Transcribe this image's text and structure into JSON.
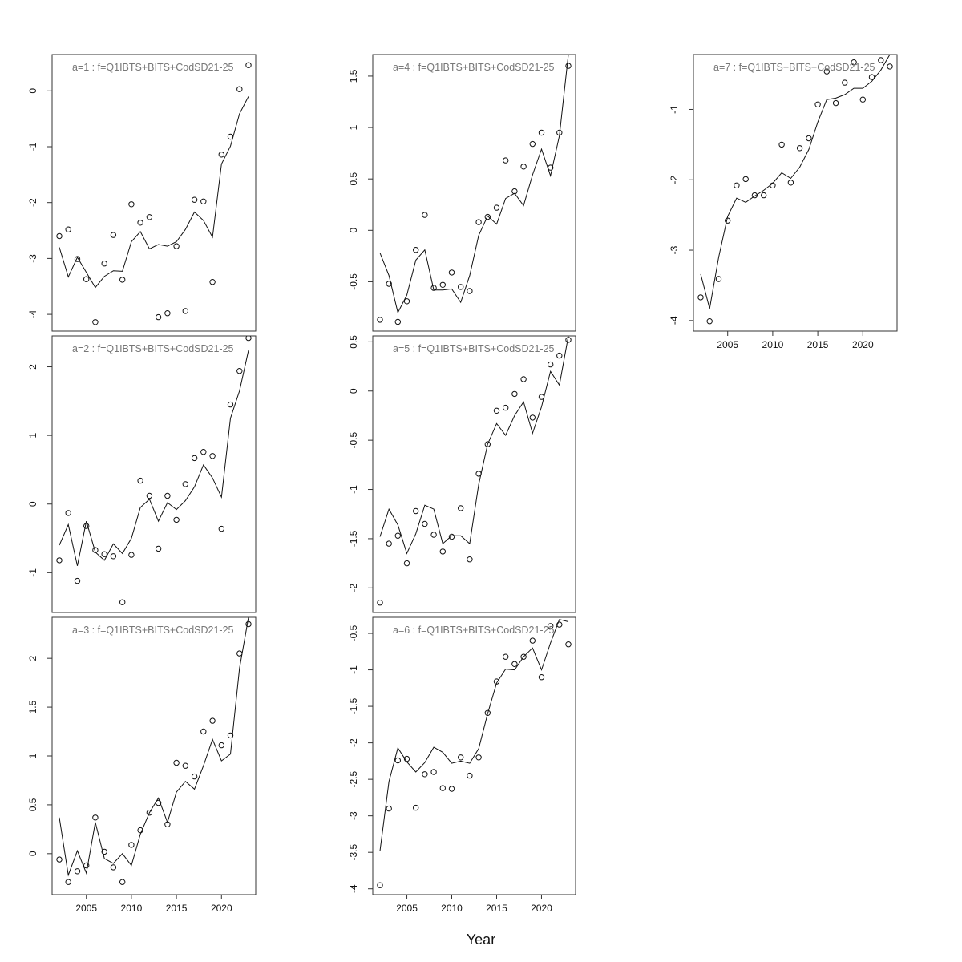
{
  "figure": {
    "xlabel": "Year"
  },
  "chart_data": [
    {
      "type": "scatter",
      "title": "a=1  :  f=Q1IBTS+BITS+CodSD21-25",
      "ylim": [
        -4.3,
        0.65
      ],
      "yticks": [
        -4,
        -3,
        -2,
        -1,
        0
      ],
      "xlim": [
        2001.2,
        2023.8
      ],
      "xticks": [],
      "x": [
        2002,
        2003,
        2004,
        2005,
        2006,
        2007,
        2008,
        2009,
        2010,
        2011,
        2012,
        2013,
        2014,
        2015,
        2016,
        2017,
        2018,
        2019,
        2020,
        2021,
        2022,
        2023
      ],
      "series": [
        {
          "style": "points",
          "values": [
            -2.6,
            -2.48,
            -3.01,
            -3.37,
            -4.14,
            -3.09,
            -2.58,
            -3.38,
            -2.03,
            -2.36,
            -2.26,
            -4.05,
            -3.98,
            -2.78,
            -3.94,
            -1.95,
            -1.98,
            -3.42,
            -1.14,
            -0.82,
            0.03,
            0.46
          ]
        },
        {
          "style": "line",
          "values": [
            -2.8,
            -3.33,
            -2.98,
            -3.25,
            -3.52,
            -3.32,
            -3.22,
            -3.23,
            -2.7,
            -2.52,
            -2.83,
            -2.75,
            -2.78,
            -2.7,
            -2.48,
            -2.17,
            -2.32,
            -2.62,
            -1.31,
            -0.99,
            -0.41,
            -0.1
          ]
        }
      ]
    },
    {
      "type": "scatter",
      "title": "a=2  :  f=Q1IBTS+BITS+CodSD21-25",
      "ylim": [
        -1.58,
        2.45
      ],
      "yticks": [
        -1,
        0,
        1,
        2
      ],
      "xlim": [
        2001.2,
        2023.8
      ],
      "xticks": [],
      "x": [
        2002,
        2003,
        2004,
        2005,
        2006,
        2007,
        2008,
        2009,
        2010,
        2011,
        2012,
        2013,
        2014,
        2015,
        2016,
        2017,
        2018,
        2019,
        2020,
        2021,
        2022,
        2023
      ],
      "series": [
        {
          "style": "points",
          "values": [
            -0.82,
            -0.13,
            -1.12,
            -0.32,
            -0.67,
            -0.73,
            -0.76,
            -1.43,
            -0.74,
            0.34,
            0.12,
            -0.65,
            0.12,
            -0.23,
            0.29,
            0.67,
            0.76,
            0.7,
            -0.36,
            1.45,
            1.94,
            2.42
          ]
        },
        {
          "style": "line",
          "values": [
            -0.6,
            -0.3,
            -0.9,
            -0.25,
            -0.7,
            -0.82,
            -0.58,
            -0.72,
            -0.5,
            -0.05,
            0.07,
            -0.25,
            0.02,
            -0.08,
            0.05,
            0.25,
            0.57,
            0.38,
            0.1,
            1.25,
            1.65,
            2.24
          ]
        }
      ]
    },
    {
      "type": "scatter",
      "title": "a=3  :  f=Q1IBTS+BITS+CodSD21-25",
      "ylim": [
        -0.42,
        2.42
      ],
      "yticks": [
        0.0,
        0.5,
        1.0,
        1.5,
        2.0
      ],
      "xlim": [
        2001.2,
        2023.8
      ],
      "xticks": [
        2005,
        2010,
        2015,
        2020
      ],
      "x": [
        2002,
        2003,
        2004,
        2005,
        2006,
        2007,
        2008,
        2009,
        2010,
        2011,
        2012,
        2013,
        2014,
        2015,
        2016,
        2017,
        2018,
        2019,
        2020,
        2021,
        2022,
        2023
      ],
      "series": [
        {
          "style": "points",
          "values": [
            -0.06,
            -0.29,
            -0.18,
            -0.12,
            0.37,
            0.02,
            -0.14,
            -0.29,
            0.09,
            0.24,
            0.42,
            0.52,
            0.3,
            0.93,
            0.9,
            0.79,
            1.25,
            1.36,
            1.11,
            1.21,
            2.05,
            2.35
          ]
        },
        {
          "style": "line",
          "values": [
            0.37,
            -0.22,
            0.03,
            -0.2,
            0.32,
            -0.05,
            -0.1,
            0.0,
            -0.12,
            0.2,
            0.42,
            0.57,
            0.32,
            0.63,
            0.74,
            0.66,
            0.9,
            1.17,
            0.95,
            1.02,
            1.9,
            2.42
          ]
        }
      ]
    },
    {
      "type": "scatter",
      "title": "a=4  :  f=Q1IBTS+BITS+CodSD21-25",
      "ylim": [
        -0.98,
        1.71
      ],
      "yticks": [
        -0.5,
        0.0,
        0.5,
        1.0,
        1.5
      ],
      "xlim": [
        2001.2,
        2023.8
      ],
      "xticks": [],
      "x": [
        2002,
        2003,
        2004,
        2005,
        2006,
        2007,
        2008,
        2009,
        2010,
        2011,
        2012,
        2013,
        2014,
        2015,
        2016,
        2017,
        2018,
        2019,
        2020,
        2021,
        2022,
        2023
      ],
      "series": [
        {
          "style": "points",
          "values": [
            -0.87,
            -0.52,
            -0.89,
            -0.69,
            -0.19,
            0.15,
            -0.56,
            -0.53,
            -0.41,
            -0.55,
            -0.59,
            0.08,
            0.13,
            0.22,
            0.68,
            0.38,
            0.62,
            0.84,
            0.95,
            0.61,
            0.95,
            1.6
          ]
        },
        {
          "style": "line",
          "values": [
            -0.22,
            -0.44,
            -0.8,
            -0.63,
            -0.29,
            -0.19,
            -0.58,
            -0.58,
            -0.57,
            -0.7,
            -0.44,
            -0.05,
            0.14,
            0.06,
            0.31,
            0.36,
            0.24,
            0.54,
            0.79,
            0.53,
            0.92,
            1.71
          ]
        }
      ]
    },
    {
      "type": "scatter",
      "title": "a=5  :  f=Q1IBTS+BITS+CodSD21-25",
      "ylim": [
        -2.25,
        0.56
      ],
      "yticks": [
        -2.0,
        -1.5,
        -1.0,
        -0.5,
        0.0,
        0.5
      ],
      "xlim": [
        2001.2,
        2023.8
      ],
      "xticks": [],
      "x": [
        2002,
        2003,
        2004,
        2005,
        2006,
        2007,
        2008,
        2009,
        2010,
        2011,
        2012,
        2013,
        2014,
        2015,
        2016,
        2017,
        2018,
        2019,
        2020,
        2021,
        2022,
        2023
      ],
      "series": [
        {
          "style": "points",
          "values": [
            -2.15,
            -1.55,
            -1.47,
            -1.75,
            -1.22,
            -1.35,
            -1.46,
            -1.63,
            -1.48,
            -1.19,
            -1.71,
            -0.84,
            -0.54,
            -0.2,
            -0.17,
            -0.03,
            0.12,
            -0.27,
            -0.06,
            0.27,
            0.36,
            0.52
          ]
        },
        {
          "style": "line",
          "values": [
            -1.48,
            -1.2,
            -1.36,
            -1.65,
            -1.45,
            -1.16,
            -1.2,
            -1.55,
            -1.47,
            -1.47,
            -1.55,
            -0.95,
            -0.54,
            -0.33,
            -0.45,
            -0.25,
            -0.11,
            -0.43,
            -0.16,
            0.2,
            0.06,
            0.56
          ]
        }
      ]
    },
    {
      "type": "scatter",
      "title": "a=6  :  f=Q1IBTS+BITS+CodSD21-25",
      "ylim": [
        -4.08,
        -0.28
      ],
      "yticks": [
        -4.0,
        -3.5,
        -3.0,
        -2.5,
        -2.0,
        -1.5,
        -1.0,
        -0.5
      ],
      "xlim": [
        2001.2,
        2023.8
      ],
      "xticks": [
        2005,
        2010,
        2015,
        2020
      ],
      "x": [
        2002,
        2003,
        2004,
        2005,
        2006,
        2007,
        2008,
        2009,
        2010,
        2011,
        2012,
        2013,
        2014,
        2015,
        2016,
        2017,
        2018,
        2019,
        2020,
        2021,
        2022,
        2023
      ],
      "series": [
        {
          "style": "points",
          "values": [
            -3.95,
            -2.9,
            -2.24,
            -2.22,
            -2.89,
            -2.43,
            -2.4,
            -2.62,
            -2.63,
            -2.2,
            -2.45,
            -2.2,
            -1.59,
            -1.16,
            -0.82,
            -0.92,
            -0.82,
            -0.6,
            -1.1,
            -0.4,
            -0.38,
            -0.65
          ]
        },
        {
          "style": "line",
          "values": [
            -3.48,
            -2.53,
            -2.07,
            -2.26,
            -2.4,
            -2.27,
            -2.06,
            -2.13,
            -2.28,
            -2.25,
            -2.28,
            -2.08,
            -1.6,
            -1.18,
            -0.99,
            -1.0,
            -0.82,
            -0.7,
            -1.0,
            -0.63,
            -0.31,
            -0.34
          ]
        }
      ]
    },
    {
      "type": "scatter",
      "title": "a=7  :  f=Q1IBTS+BITS+CodSD21-25",
      "ylim": [
        -4.15,
        -0.22
      ],
      "yticks": [
        -4,
        -3,
        -2,
        -1
      ],
      "xlim": [
        2001.2,
        2023.8
      ],
      "xticks": [
        2005,
        2010,
        2015,
        2020
      ],
      "x": [
        2002,
        2003,
        2004,
        2005,
        2006,
        2007,
        2008,
        2009,
        2010,
        2011,
        2012,
        2013,
        2014,
        2015,
        2016,
        2017,
        2018,
        2019,
        2020,
        2021,
        2022,
        2023
      ],
      "series": [
        {
          "style": "points",
          "values": [
            -3.67,
            -4.01,
            -3.41,
            -2.58,
            -2.08,
            -1.99,
            -2.22,
            -2.22,
            -2.08,
            -1.5,
            -2.04,
            -1.55,
            -1.41,
            -0.93,
            -0.46,
            -0.91,
            -0.62,
            -0.33,
            -0.86,
            -0.54,
            -0.3,
            -0.39
          ]
        },
        {
          "style": "line",
          "values": [
            -3.34,
            -3.83,
            -3.1,
            -2.52,
            -2.26,
            -2.32,
            -2.23,
            -2.15,
            -2.05,
            -1.9,
            -1.98,
            -1.82,
            -1.57,
            -1.18,
            -0.86,
            -0.84,
            -0.79,
            -0.7,
            -0.7,
            -0.6,
            -0.44,
            -0.22
          ]
        }
      ]
    }
  ]
}
